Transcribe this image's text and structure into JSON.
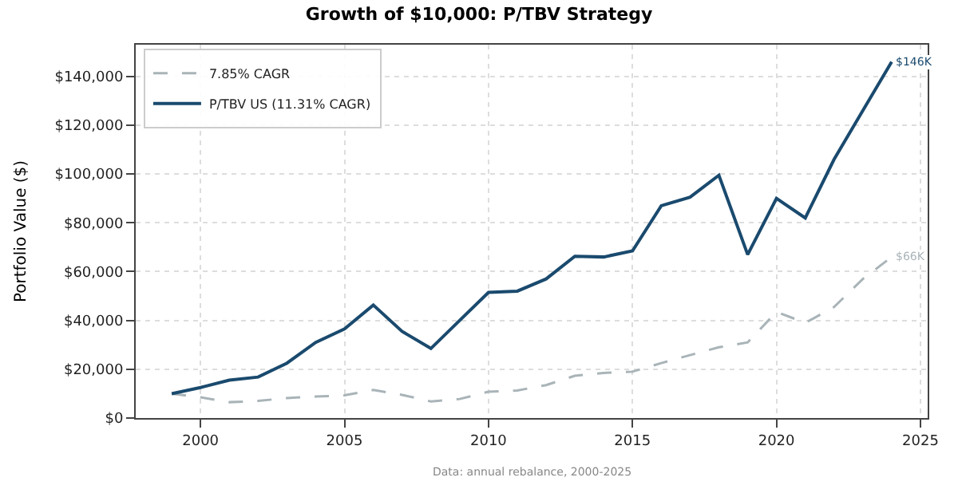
{
  "chart_data": {
    "type": "line",
    "title": "Growth of $10,000: P/TBV Strategy",
    "ylabel": "Portfolio Value ($)",
    "x": [
      1999,
      2000,
      2001,
      2002,
      2003,
      2004,
      2005,
      2006,
      2007,
      2008,
      2009,
      2010,
      2011,
      2012,
      2013,
      2014,
      2015,
      2016,
      2017,
      2018,
      2019,
      2020,
      2021,
      2022,
      2023,
      2024
    ],
    "series": [
      {
        "name": "7.85% CAGR",
        "color": "#a9b4b8",
        "line_style": "dashed",
        "values": [
          10000,
          8500,
          6500,
          7000,
          8200,
          8800,
          9300,
          11500,
          9500,
          6800,
          7800,
          10800,
          11300,
          13500,
          17300,
          18500,
          19000,
          22500,
          25800,
          29000,
          31000,
          43500,
          39000,
          45500,
          57000,
          66000
        ]
      },
      {
        "name": "P/TBV US (11.31% CAGR)",
        "color": "#1a4a6e",
        "line_style": "solid",
        "values": [
          10000,
          12500,
          15500,
          16800,
          22500,
          31000,
          36500,
          46300,
          35500,
          28500,
          40000,
          51500,
          52000,
          57000,
          66300,
          66000,
          68500,
          87000,
          90500,
          99500,
          67000,
          90000,
          82000,
          106000,
          126000,
          146000
        ]
      }
    ],
    "annotations": [
      {
        "text": "$146K",
        "x": 2024,
        "y": 146000
      },
      {
        "text": "$66K",
        "x": 2024,
        "y": 66000
      },
      "Data: annual rebalance, 2000-2025"
    ],
    "xlim": [
      1997.75,
      2025.25
    ],
    "xticks": [
      2000,
      2005,
      2010,
      2015,
      2020,
      2025
    ],
    "ylim": [
      0,
      153000
    ],
    "yticks": [
      {
        "value": 0,
        "label": "$0"
      },
      {
        "value": 20000,
        "label": "$20,000"
      },
      {
        "value": 40000,
        "label": "$40,000"
      },
      {
        "value": 60000,
        "label": "$60,000"
      },
      {
        "value": 80000,
        "label": "$80,000"
      },
      {
        "value": 100000,
        "label": "$100,000"
      },
      {
        "value": 120000,
        "label": "$120,000"
      },
      {
        "value": 140000,
        "label": "$140,000"
      }
    ],
    "grid": true,
    "legend": "top left",
    "marker": "none"
  }
}
